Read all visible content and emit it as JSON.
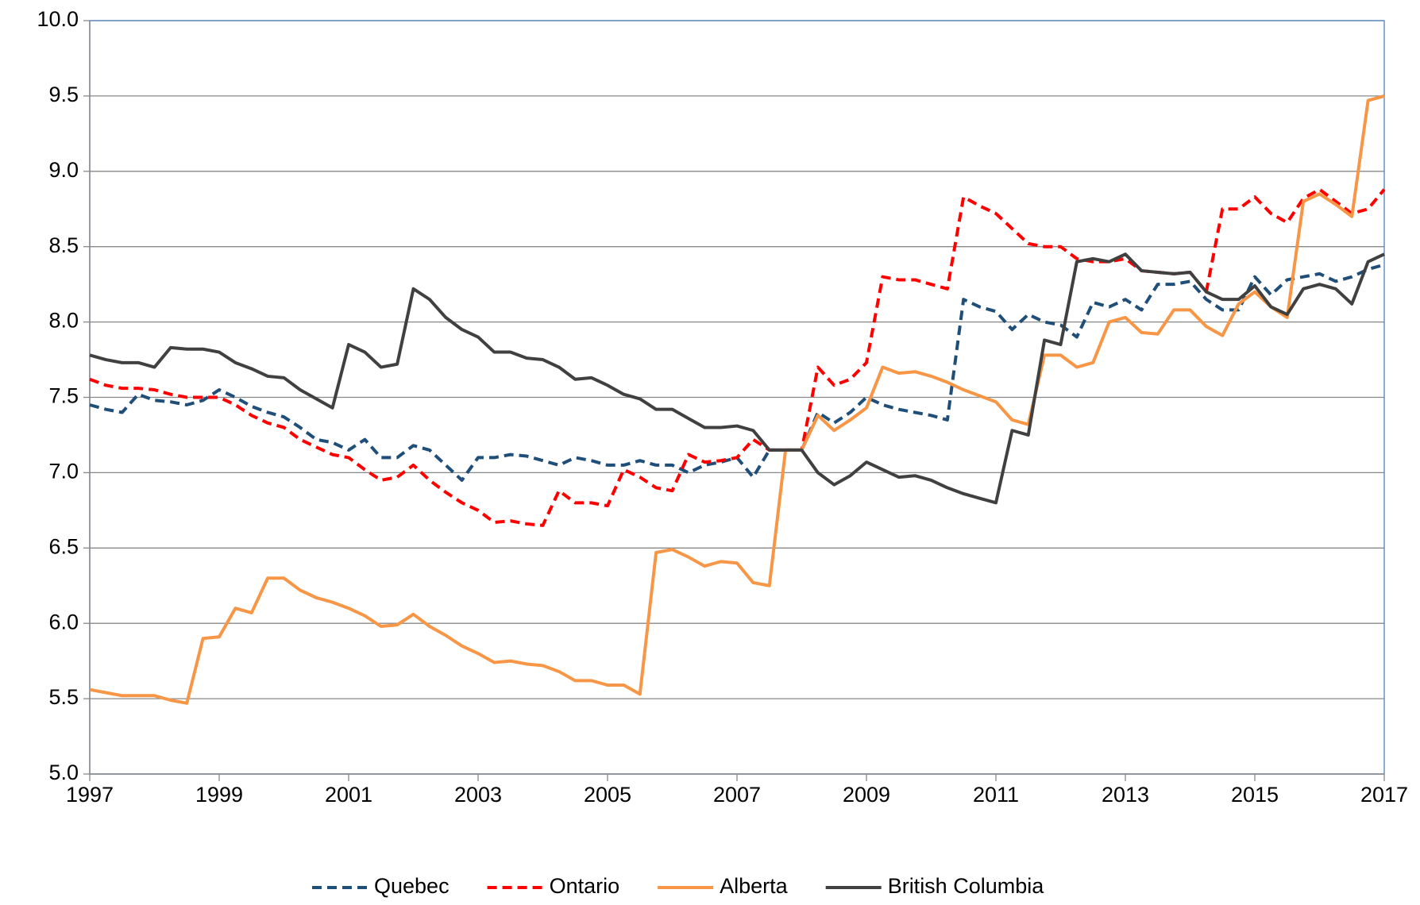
{
  "chart_data": {
    "type": "line",
    "x": [
      1997,
      1997.25,
      1997.5,
      1997.75,
      1998,
      1998.25,
      1998.5,
      1998.75,
      1999,
      1999.25,
      1999.5,
      1999.75,
      2000,
      2000.25,
      2000.5,
      2000.75,
      2001,
      2001.25,
      2001.5,
      2001.75,
      2002,
      2002.25,
      2002.5,
      2002.75,
      2003,
      2003.25,
      2003.5,
      2003.75,
      2004,
      2004.25,
      2004.5,
      2004.75,
      2005,
      2005.25,
      2005.5,
      2005.75,
      2006,
      2006.25,
      2006.5,
      2006.75,
      2007,
      2007.25,
      2007.5,
      2007.75,
      2008,
      2008.25,
      2008.5,
      2008.75,
      2009,
      2009.25,
      2009.5,
      2009.75,
      2010,
      2010.25,
      2010.5,
      2010.75,
      2011,
      2011.25,
      2011.5,
      2011.75,
      2012,
      2012.25,
      2012.5,
      2012.75,
      2013,
      2013.25,
      2013.5,
      2013.75,
      2014,
      2014.25,
      2014.5,
      2014.75,
      2015,
      2015.25,
      2015.5,
      2015.75,
      2016,
      2016.25,
      2016.5,
      2016.75,
      2017
    ],
    "series": [
      {
        "name": "Quebec",
        "color": "#1f4e79",
        "dashed": true,
        "values": [
          7.45,
          7.42,
          7.4,
          7.52,
          7.48,
          7.47,
          7.45,
          7.48,
          7.55,
          7.5,
          7.44,
          7.4,
          7.37,
          7.3,
          7.22,
          7.2,
          7.15,
          7.22,
          7.1,
          7.1,
          7.18,
          7.15,
          7.05,
          6.95,
          7.1,
          7.1,
          7.12,
          7.11,
          7.08,
          7.05,
          7.1,
          7.08,
          7.05,
          7.05,
          7.08,
          7.05,
          7.05,
          7.0,
          7.05,
          7.07,
          7.1,
          6.97,
          7.15,
          7.15,
          7.15,
          7.4,
          7.33,
          7.4,
          7.5,
          7.45,
          7.42,
          7.4,
          7.38,
          7.35,
          8.15,
          8.1,
          8.07,
          7.95,
          8.05,
          8.0,
          7.98,
          7.9,
          8.13,
          8.1,
          8.15,
          8.08,
          8.25,
          8.25,
          8.27,
          8.15,
          8.08,
          8.08,
          8.3,
          8.18,
          8.28,
          8.3,
          8.32,
          8.27,
          8.3,
          8.35,
          8.38
        ]
      },
      {
        "name": "Ontario",
        "color": "#ff0000",
        "dashed": true,
        "values": [
          7.62,
          7.58,
          7.56,
          7.56,
          7.55,
          7.52,
          7.5,
          7.5,
          7.5,
          7.45,
          7.38,
          7.33,
          7.3,
          7.22,
          7.17,
          7.12,
          7.1,
          7.02,
          6.95,
          6.97,
          7.05,
          6.95,
          6.87,
          6.8,
          6.75,
          6.67,
          6.68,
          6.66,
          6.65,
          6.88,
          6.8,
          6.8,
          6.78,
          7.02,
          6.97,
          6.9,
          6.88,
          7.12,
          7.07,
          7.08,
          7.1,
          7.22,
          7.15,
          7.15,
          7.15,
          7.7,
          7.58,
          7.62,
          7.73,
          8.3,
          8.28,
          8.28,
          8.25,
          8.22,
          8.83,
          8.77,
          8.72,
          8.62,
          8.52,
          8.5,
          8.5,
          8.42,
          8.4,
          8.4,
          8.42,
          8.34,
          8.33,
          8.32,
          8.33,
          8.2,
          8.75,
          8.75,
          8.83,
          8.72,
          8.66,
          8.82,
          8.88,
          8.8,
          8.72,
          8.75,
          8.88
        ]
      },
      {
        "name": "Alberta",
        "color": "#f79646",
        "dashed": false,
        "values": [
          5.56,
          5.54,
          5.52,
          5.52,
          5.52,
          5.49,
          5.47,
          5.9,
          5.91,
          6.1,
          6.07,
          6.3,
          6.3,
          6.22,
          6.17,
          6.14,
          6.1,
          6.05,
          5.98,
          5.99,
          6.06,
          5.98,
          5.92,
          5.85,
          5.8,
          5.74,
          5.75,
          5.73,
          5.72,
          5.68,
          5.62,
          5.62,
          5.59,
          5.59,
          5.53,
          6.47,
          6.49,
          6.44,
          6.38,
          6.41,
          6.4,
          6.27,
          6.25,
          7.15,
          7.15,
          7.38,
          7.28,
          7.35,
          7.43,
          7.7,
          7.66,
          7.67,
          7.64,
          7.6,
          7.55,
          7.51,
          7.47,
          7.35,
          7.32,
          7.78,
          7.78,
          7.7,
          7.73,
          8.0,
          8.03,
          7.93,
          7.92,
          8.08,
          8.08,
          7.97,
          7.91,
          8.12,
          8.2,
          8.1,
          8.03,
          8.8,
          8.85,
          8.78,
          8.7,
          9.47,
          9.5
        ]
      },
      {
        "name": "British Columbia",
        "color": "#404040",
        "dashed": false,
        "values": [
          7.78,
          7.75,
          7.73,
          7.73,
          7.7,
          7.83,
          7.82,
          7.82,
          7.8,
          7.73,
          7.69,
          7.64,
          7.63,
          7.55,
          7.49,
          7.43,
          7.85,
          7.8,
          7.7,
          7.72,
          8.22,
          8.15,
          8.03,
          7.95,
          7.9,
          7.8,
          7.8,
          7.76,
          7.75,
          7.7,
          7.62,
          7.63,
          7.58,
          7.52,
          7.49,
          7.42,
          7.42,
          7.36,
          7.3,
          7.3,
          7.31,
          7.28,
          7.15,
          7.15,
          7.15,
          7.0,
          6.92,
          6.98,
          7.07,
          7.02,
          6.97,
          6.98,
          6.95,
          6.9,
          6.86,
          6.83,
          6.8,
          7.28,
          7.25,
          7.88,
          7.85,
          8.4,
          8.42,
          8.4,
          8.45,
          8.34,
          8.33,
          8.32,
          8.33,
          8.2,
          8.15,
          8.15,
          8.24,
          8.1,
          8.05,
          8.22,
          8.25,
          8.22,
          8.12,
          8.4,
          8.45
        ]
      }
    ],
    "xlim": [
      1997,
      2017
    ],
    "xticks": [
      1997,
      1999,
      2001,
      2003,
      2005,
      2007,
      2009,
      2011,
      2013,
      2015,
      2017
    ],
    "ylim": [
      5,
      10
    ],
    "yticks": [
      {
        "value": 5,
        "label": "5.0"
      },
      5.5,
      {
        "value": 6,
        "label": "6.0"
      },
      6.5,
      {
        "value": 7,
        "label": "7.0"
      },
      7.5,
      {
        "value": 8,
        "label": "8.0"
      },
      8.5,
      {
        "value": 9,
        "label": "9.0"
      },
      9.5,
      {
        "value": 10,
        "label": "10.0"
      }
    ],
    "grid": true,
    "legend": "bottom"
  }
}
